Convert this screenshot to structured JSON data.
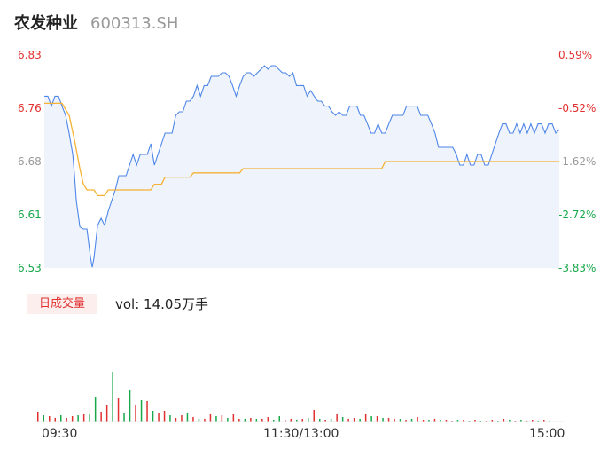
{
  "header": {
    "name": "农发种业",
    "code": "600313.SH"
  },
  "chart_data": {
    "type": "line",
    "price_axis": {
      "ylim": [
        6.53,
        6.83
      ],
      "left_ticks": [
        "6.83",
        "6.76",
        "6.68",
        "6.61",
        "6.53"
      ],
      "right_ticks": [
        "0.59%",
        "-0.52%",
        "-1.62%",
        "-2.72%",
        "-3.83%"
      ]
    },
    "x_ticks": [
      "09:30",
      "11:30/13:00",
      "15:00"
    ],
    "series": [
      {
        "kind": "price",
        "points": [
          [
            0,
            6.772
          ],
          [
            2,
            6.772
          ],
          [
            4,
            6.758
          ],
          [
            6,
            6.772
          ],
          [
            8,
            6.772
          ],
          [
            10,
            6.758
          ],
          [
            12,
            6.745
          ],
          [
            14,
            6.72
          ],
          [
            16,
            6.69
          ],
          [
            17,
            6.66
          ],
          [
            18,
            6.625
          ],
          [
            20,
            6.588
          ],
          [
            22,
            6.585
          ],
          [
            24,
            6.585
          ],
          [
            26,
            6.545
          ],
          [
            27,
            6.531
          ],
          [
            28,
            6.545
          ],
          [
            30,
            6.59
          ],
          [
            32,
            6.6
          ],
          [
            34,
            6.59
          ],
          [
            36,
            6.61
          ],
          [
            38,
            6.625
          ],
          [
            40,
            6.64
          ],
          [
            42,
            6.66
          ],
          [
            44,
            6.66
          ],
          [
            46,
            6.66
          ],
          [
            48,
            6.675
          ],
          [
            50,
            6.69
          ],
          [
            52,
            6.675
          ],
          [
            54,
            6.69
          ],
          [
            56,
            6.69
          ],
          [
            58,
            6.69
          ],
          [
            60,
            6.705
          ],
          [
            62,
            6.675
          ],
          [
            64,
            6.69
          ],
          [
            66,
            6.705
          ],
          [
            68,
            6.72
          ],
          [
            70,
            6.72
          ],
          [
            72,
            6.72
          ],
          [
            74,
            6.745
          ],
          [
            76,
            6.75
          ],
          [
            78,
            6.75
          ],
          [
            80,
            6.765
          ],
          [
            82,
            6.765
          ],
          [
            84,
            6.772
          ],
          [
            86,
            6.787
          ],
          [
            88,
            6.772
          ],
          [
            90,
            6.787
          ],
          [
            92,
            6.787
          ],
          [
            94,
            6.8
          ],
          [
            96,
            6.8
          ],
          [
            98,
            6.8
          ],
          [
            100,
            6.805
          ],
          [
            102,
            6.805
          ],
          [
            104,
            6.8
          ],
          [
            106,
            6.787
          ],
          [
            108,
            6.772
          ],
          [
            110,
            6.787
          ],
          [
            112,
            6.8
          ],
          [
            114,
            6.805
          ],
          [
            116,
            6.805
          ],
          [
            118,
            6.8
          ],
          [
            120,
            6.805
          ],
          [
            122,
            6.81
          ],
          [
            124,
            6.815
          ],
          [
            126,
            6.81
          ],
          [
            128,
            6.815
          ],
          [
            130,
            6.815
          ],
          [
            132,
            6.81
          ],
          [
            134,
            6.805
          ],
          [
            136,
            6.805
          ],
          [
            138,
            6.8
          ],
          [
            140,
            6.805
          ],
          [
            142,
            6.787
          ],
          [
            144,
            6.787
          ],
          [
            146,
            6.787
          ],
          [
            148,
            6.772
          ],
          [
            150,
            6.78
          ],
          [
            152,
            6.772
          ],
          [
            154,
            6.765
          ],
          [
            156,
            6.765
          ],
          [
            158,
            6.758
          ],
          [
            160,
            6.758
          ],
          [
            162,
            6.75
          ],
          [
            164,
            6.745
          ],
          [
            166,
            6.75
          ],
          [
            168,
            6.745
          ],
          [
            170,
            6.745
          ],
          [
            172,
            6.758
          ],
          [
            174,
            6.758
          ],
          [
            176,
            6.758
          ],
          [
            178,
            6.745
          ],
          [
            180,
            6.745
          ],
          [
            182,
            6.733
          ],
          [
            184,
            6.72
          ],
          [
            186,
            6.72
          ],
          [
            188,
            6.733
          ],
          [
            190,
            6.72
          ],
          [
            192,
            6.72
          ],
          [
            194,
            6.733
          ],
          [
            196,
            6.745
          ],
          [
            198,
            6.745
          ],
          [
            200,
            6.745
          ],
          [
            202,
            6.745
          ],
          [
            204,
            6.758
          ],
          [
            206,
            6.758
          ],
          [
            208,
            6.758
          ],
          [
            210,
            6.758
          ],
          [
            212,
            6.745
          ],
          [
            214,
            6.745
          ],
          [
            216,
            6.745
          ],
          [
            218,
            6.733
          ],
          [
            220,
            6.72
          ],
          [
            222,
            6.7
          ],
          [
            224,
            6.7
          ],
          [
            226,
            6.7
          ],
          [
            228,
            6.7
          ],
          [
            230,
            6.7
          ],
          [
            232,
            6.69
          ],
          [
            234,
            6.675
          ],
          [
            236,
            6.675
          ],
          [
            238,
            6.69
          ],
          [
            240,
            6.675
          ],
          [
            242,
            6.675
          ],
          [
            244,
            6.69
          ],
          [
            246,
            6.69
          ],
          [
            248,
            6.675
          ],
          [
            250,
            6.675
          ],
          [
            252,
            6.69
          ],
          [
            254,
            6.705
          ],
          [
            256,
            6.72
          ],
          [
            258,
            6.733
          ],
          [
            260,
            6.733
          ],
          [
            262,
            6.72
          ],
          [
            264,
            6.72
          ],
          [
            266,
            6.733
          ],
          [
            268,
            6.72
          ],
          [
            270,
            6.733
          ],
          [
            272,
            6.72
          ],
          [
            274,
            6.733
          ],
          [
            276,
            6.72
          ],
          [
            278,
            6.733
          ],
          [
            280,
            6.733
          ],
          [
            282,
            6.72
          ],
          [
            284,
            6.733
          ],
          [
            286,
            6.733
          ],
          [
            288,
            6.72
          ],
          [
            290,
            6.725
          ]
        ]
      },
      {
        "kind": "average",
        "points": [
          [
            0,
            6.762
          ],
          [
            10,
            6.762
          ],
          [
            14,
            6.745
          ],
          [
            17,
            6.71
          ],
          [
            20,
            6.67
          ],
          [
            22,
            6.648
          ],
          [
            24,
            6.64
          ],
          [
            28,
            6.64
          ],
          [
            30,
            6.632
          ],
          [
            34,
            6.632
          ],
          [
            36,
            6.64
          ],
          [
            60,
            6.64
          ],
          [
            62,
            6.648
          ],
          [
            66,
            6.648
          ],
          [
            68,
            6.658
          ],
          [
            82,
            6.658
          ],
          [
            84,
            6.664
          ],
          [
            110,
            6.664
          ],
          [
            112,
            6.67
          ],
          [
            190,
            6.67
          ],
          [
            192,
            6.68
          ],
          [
            290,
            6.68
          ]
        ]
      }
    ],
    "volume": {
      "label": "日成交量",
      "summary": "vol: 14.05万手",
      "bars": [
        [
          11,
          "r"
        ],
        [
          7,
          "g"
        ],
        [
          6,
          "r"
        ],
        [
          4,
          "r"
        ],
        [
          7,
          "g"
        ],
        [
          4,
          "r"
        ],
        [
          6,
          "r"
        ],
        [
          7,
          "g"
        ],
        [
          8,
          "r"
        ],
        [
          9,
          "g"
        ],
        [
          28,
          "g"
        ],
        [
          11,
          "r"
        ],
        [
          19,
          "r"
        ],
        [
          56,
          "g"
        ],
        [
          26,
          "r"
        ],
        [
          10,
          "g"
        ],
        [
          35,
          "g"
        ],
        [
          19,
          "r"
        ],
        [
          24,
          "g"
        ],
        [
          23,
          "r"
        ],
        [
          12,
          "g"
        ],
        [
          10,
          "r"
        ],
        [
          12,
          "r"
        ],
        [
          7,
          "g"
        ],
        [
          4,
          "r"
        ],
        [
          7,
          "r"
        ],
        [
          10,
          "g"
        ],
        [
          5,
          "r"
        ],
        [
          3,
          "g"
        ],
        [
          3,
          "r"
        ],
        [
          8,
          "r"
        ],
        [
          6,
          "g"
        ],
        [
          7,
          "r"
        ],
        [
          4,
          "g"
        ],
        [
          8,
          "r"
        ],
        [
          3,
          "r"
        ],
        [
          3,
          "g"
        ],
        [
          4,
          "r"
        ],
        [
          3,
          "g"
        ],
        [
          3,
          "r"
        ],
        [
          5,
          "r"
        ],
        [
          2,
          "g"
        ],
        [
          6,
          "g"
        ],
        [
          2,
          "r"
        ],
        [
          3,
          "r"
        ],
        [
          2,
          "g"
        ],
        [
          3,
          "r"
        ],
        [
          4,
          "g"
        ],
        [
          13,
          "r"
        ],
        [
          3,
          "g"
        ],
        [
          2,
          "r"
        ],
        [
          3,
          "g"
        ],
        [
          8,
          "r"
        ],
        [
          5,
          "g"
        ],
        [
          3,
          "r"
        ],
        [
          4,
          "r"
        ],
        [
          3,
          "g"
        ],
        [
          9,
          "r"
        ],
        [
          6,
          "g"
        ],
        [
          6,
          "r"
        ],
        [
          4,
          "g"
        ],
        [
          4,
          "r"
        ],
        [
          3,
          "r"
        ],
        [
          3,
          "g"
        ],
        [
          2,
          "r"
        ],
        [
          3,
          "g"
        ],
        [
          5,
          "r"
        ],
        [
          2,
          "r"
        ],
        [
          2,
          "g"
        ],
        [
          3,
          "r"
        ],
        [
          2,
          "g"
        ],
        [
          2,
          "r"
        ],
        [
          1,
          "r"
        ],
        [
          2,
          "g"
        ],
        [
          2,
          "r"
        ],
        [
          1,
          "g"
        ],
        [
          2,
          "r"
        ],
        [
          1,
          "g"
        ],
        [
          1,
          "r"
        ],
        [
          2,
          "r"
        ],
        [
          1,
          "g"
        ],
        [
          3,
          "r"
        ],
        [
          2,
          "g"
        ],
        [
          1,
          "r"
        ],
        [
          2,
          "g"
        ],
        [
          1,
          "r"
        ],
        [
          2,
          "r"
        ],
        [
          1,
          "g"
        ],
        [
          2,
          "r"
        ],
        [
          1,
          "g"
        ]
      ]
    }
  }
}
